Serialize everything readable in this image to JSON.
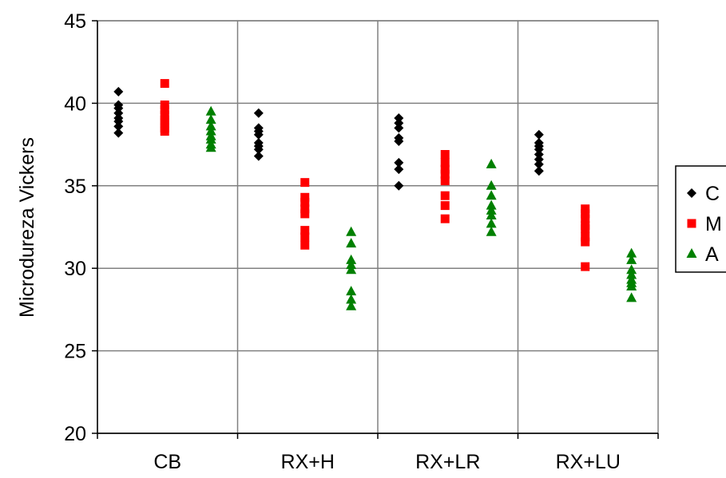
{
  "chart_data": {
    "type": "scatter",
    "categories": [
      "CB",
      "RX+H",
      "RX+LR",
      "RX+LU"
    ],
    "ylabel": "Microdureza Vickers",
    "xlabel": "",
    "ylim": [
      20,
      45
    ],
    "yticks": [
      "20",
      "25",
      "30",
      "35",
      "40",
      "45"
    ],
    "grid": true,
    "legend_position": "right",
    "series": [
      {
        "name": "C",
        "color": "#000000",
        "marker": "diamond",
        "values": [
          [
            40.7,
            39.9,
            39.7,
            39.4,
            39.1,
            38.9,
            38.6,
            38.2
          ],
          [
            39.4,
            38.5,
            38.3,
            38.1,
            37.6,
            37.4,
            37.2,
            36.8
          ],
          [
            39.1,
            38.8,
            38.5,
            37.9,
            37.7,
            36.4,
            36.0,
            35.0
          ],
          [
            38.1,
            37.6,
            37.4,
            37.2,
            36.9,
            36.6,
            36.3,
            35.9
          ]
        ]
      },
      {
        "name": "M",
        "color": "#ff0000",
        "marker": "square",
        "values": [
          [
            41.2,
            39.9,
            39.6,
            39.3,
            39.0,
            38.8,
            38.5,
            38.3
          ],
          [
            35.2,
            34.3,
            34.0,
            33.6,
            33.3,
            32.3,
            31.9,
            31.4
          ],
          [
            36.9,
            36.4,
            36.0,
            35.7,
            35.3,
            34.4,
            33.8,
            33.0
          ],
          [
            33.6,
            33.3,
            33.0,
            32.6,
            32.4,
            31.9,
            31.6,
            30.1
          ]
        ]
      },
      {
        "name": "A",
        "color": "#008000",
        "marker": "triangle",
        "values": [
          [
            39.5,
            39.0,
            38.6,
            38.3,
            38.0,
            37.8,
            37.5,
            37.3
          ],
          [
            32.2,
            31.5,
            30.5,
            30.2,
            29.9,
            28.6,
            28.1,
            27.7
          ],
          [
            36.3,
            35.0,
            34.4,
            33.8,
            33.5,
            33.2,
            32.7,
            32.2
          ],
          [
            30.9,
            30.5,
            29.9,
            29.6,
            29.3,
            29.1,
            28.9,
            28.2
          ]
        ]
      }
    ]
  }
}
